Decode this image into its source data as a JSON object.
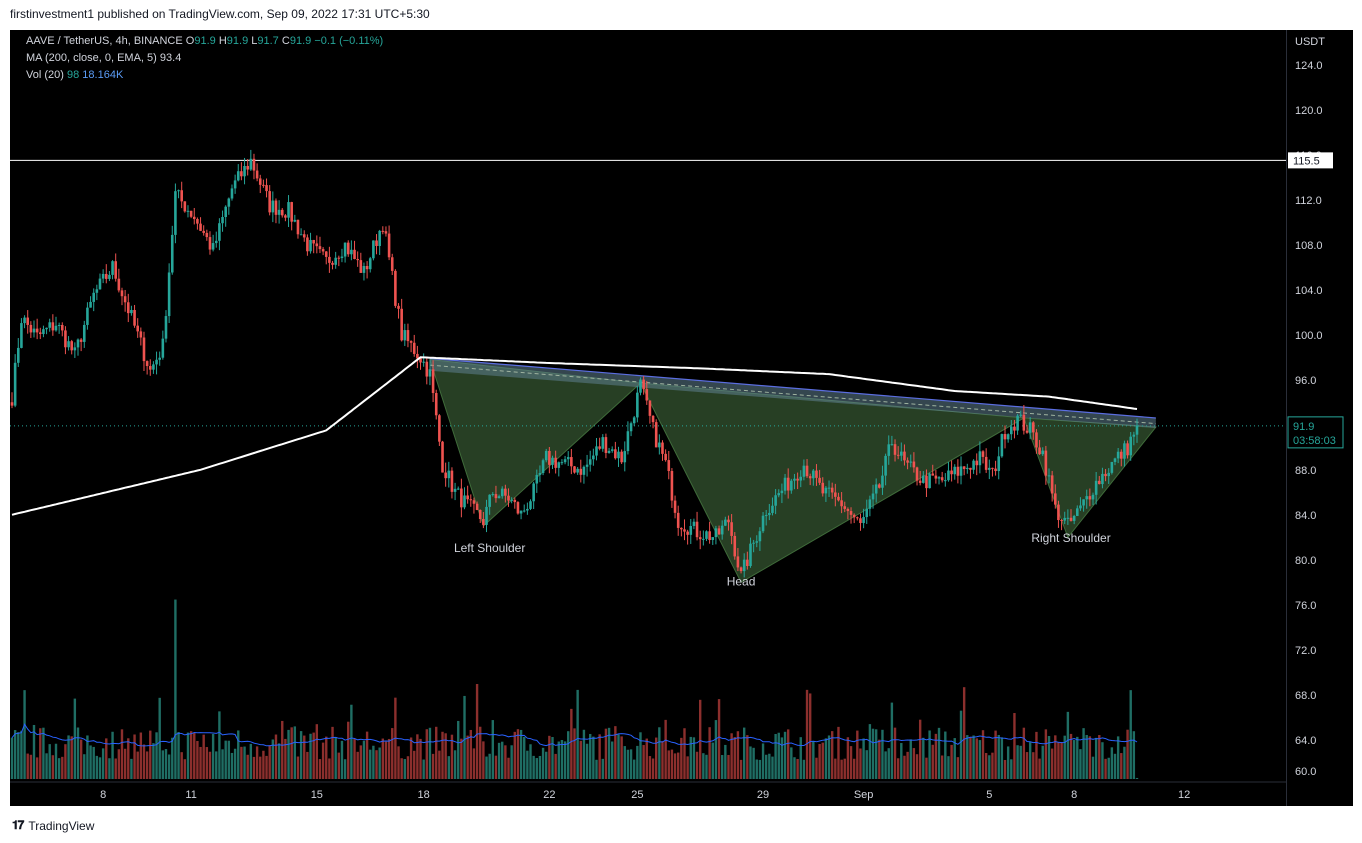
{
  "header": {
    "published": "firstinvestment1 published on TradingView.com, Sep 09, 2022 17:31 UTC+5:30"
  },
  "legend": {
    "symbol": "AAVE / TetherUS, 4h, BINANCE",
    "o_label": "O",
    "o": "91.9",
    "h_label": "H",
    "h": "91.9",
    "l_label": "L",
    "l": "91.7",
    "c_label": "C",
    "c": "91.9",
    "change": "−0.1 (−0.11%)",
    "ma_label": "MA (200, close, 0, EMA, 5)",
    "ma_value": "93.4",
    "vol_label": "Vol (20)",
    "vol_value": "98",
    "vol_ma": "18.164K"
  },
  "footer": {
    "brand": "TradingView"
  },
  "colors": {
    "bull": "#26a69a",
    "bear": "#ef5350",
    "pattern_fill": "#2e4a2a",
    "ma": "#ffffff",
    "trend": "#5b6ee1",
    "vol_ma": "#2962ff"
  },
  "chart_data": {
    "type": "candlestick",
    "currency": "USDT",
    "y_ticks": [
      "124.0",
      "120.0",
      "116.0",
      "112.0",
      "108.0",
      "104.0",
      "100.0",
      "96.0",
      "92.0",
      "88.0",
      "84.0",
      "80.0",
      "76.0",
      "72.0",
      "68.0",
      "64.0",
      "60.0"
    ],
    "x_ticks": [
      "8",
      "11",
      "15",
      "18",
      "22",
      "25",
      "29",
      "Sep",
      "5",
      "8",
      "12"
    ],
    "ylim": [
      59,
      126
    ],
    "last_price": "91.9",
    "countdown": "03:58:03",
    "horizontal_level": "115.5",
    "annotations": [
      "Left Shoulder",
      "Head",
      "Right Shoulder"
    ],
    "pattern": "inverse head and shoulders",
    "ohlc_anchor_points": [
      [
        0,
        94.5
      ],
      [
        3,
        101.5
      ],
      [
        8,
        99.8
      ],
      [
        14,
        101.0
      ],
      [
        20,
        98.2
      ],
      [
        26,
        103.5
      ],
      [
        32,
        106.0
      ],
      [
        38,
        101.5
      ],
      [
        44,
        96.8
      ],
      [
        48,
        99.0
      ],
      [
        52,
        112.5
      ],
      [
        58,
        110.5
      ],
      [
        64,
        107.5
      ],
      [
        70,
        113.0
      ],
      [
        76,
        115.5
      ],
      [
        82,
        111.5
      ],
      [
        88,
        111.0
      ],
      [
        94,
        108.0
      ],
      [
        100,
        106.5
      ],
      [
        106,
        108.0
      ],
      [
        112,
        105.5
      ],
      [
        118,
        110.0
      ],
      [
        124,
        100.0
      ],
      [
        130,
        98.0
      ],
      [
        133,
        96.5
      ],
      [
        137,
        88.5
      ],
      [
        141,
        86.0
      ],
      [
        146,
        84.5
      ],
      [
        150,
        83.5
      ],
      [
        153,
        86.0
      ],
      [
        158,
        85.5
      ],
      [
        162,
        84.0
      ],
      [
        166,
        86.0
      ],
      [
        170,
        89.0
      ],
      [
        176,
        88.5
      ],
      [
        182,
        88.0
      ],
      [
        188,
        90.5
      ],
      [
        194,
        89.0
      ],
      [
        200,
        95.5
      ],
      [
        204,
        91.5
      ],
      [
        208,
        88.5
      ],
      [
        212,
        83.5
      ],
      [
        218,
        82.5
      ],
      [
        224,
        82.0
      ],
      [
        228,
        83.5
      ],
      [
        232,
        78.5
      ],
      [
        236,
        81.5
      ],
      [
        240,
        84.5
      ],
      [
        246,
        86.5
      ],
      [
        252,
        88.5
      ],
      [
        258,
        86.0
      ],
      [
        264,
        85.0
      ],
      [
        270,
        83.0
      ],
      [
        276,
        86.5
      ],
      [
        280,
        90.5
      ],
      [
        284,
        88.5
      ],
      [
        290,
        87.0
      ],
      [
        296,
        87.0
      ],
      [
        302,
        88.0
      ],
      [
        308,
        89.0
      ],
      [
        312,
        87.5
      ],
      [
        316,
        91.5
      ],
      [
        320,
        92.5
      ],
      [
        324,
        91.5
      ],
      [
        328,
        89.5
      ],
      [
        332,
        84.5
      ],
      [
        336,
        83.0
      ],
      [
        340,
        84.5
      ],
      [
        344,
        86.5
      ],
      [
        350,
        88.5
      ],
      [
        355,
        90.0
      ],
      [
        358,
        91.9
      ]
    ],
    "ma200_path": [
      [
        0,
        84.0
      ],
      [
        60,
        88.0
      ],
      [
        100,
        91.5
      ],
      [
        130,
        98.0
      ],
      [
        170,
        97.5
      ],
      [
        220,
        97.0
      ],
      [
        260,
        96.5
      ],
      [
        300,
        95.0
      ],
      [
        330,
        94.5
      ],
      [
        358,
        93.4
      ]
    ],
    "volume_ylim": [
      0,
      18000
    ]
  }
}
